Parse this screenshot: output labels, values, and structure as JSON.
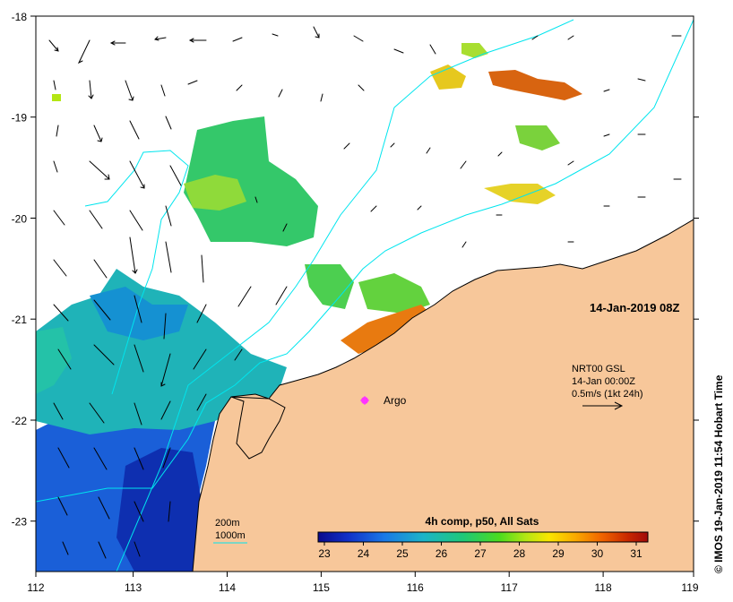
{
  "map": {
    "lon_ticks": [
      "112",
      "113",
      "114",
      "115",
      "116",
      "117",
      "118",
      "119"
    ],
    "lat_ticks": [
      "-18",
      "-19",
      "-20",
      "-21",
      "-22",
      "-23"
    ],
    "lon_range": [
      112,
      119
    ],
    "lat_range": [
      -23.5,
      -18
    ],
    "land_color": "#f7c79a",
    "no_data_color": "#ffffff",
    "current_vector_color": "#000000",
    "contour_color": "#00e5ee"
  },
  "annotations": {
    "datetime": "14-Jan-2019 08Z",
    "current_source": "NRT00 GSL",
    "current_time": "14-Jan 00:00Z",
    "current_scale": "0.5m/s (1kt 24h)",
    "argo_label": "Argo",
    "argo_marker_color": "#ff33ff",
    "contour_200m": "200m",
    "contour_1000m": "1000m",
    "credit": "© IMOS 19-Jan-2019 11:54 Hobart Time"
  },
  "colorbar": {
    "title": "4h comp, p50, All Sats",
    "ticks": [
      "23",
      "24",
      "25",
      "26",
      "27",
      "28",
      "29",
      "30",
      "31"
    ],
    "range": [
      22.7,
      31.3
    ],
    "colors": [
      "#0a0a8c",
      "#1030c8",
      "#1a78e6",
      "#1cb4c8",
      "#1ec878",
      "#4bdc1e",
      "#b4e614",
      "#fae600",
      "#faaa00",
      "#f06400",
      "#c82800",
      "#a00a0a"
    ]
  }
}
